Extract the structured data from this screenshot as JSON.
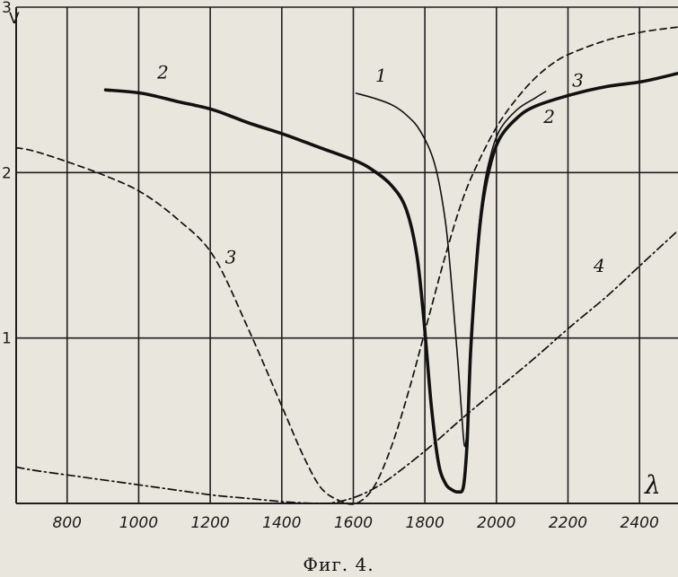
{
  "chart_data": {
    "type": "line",
    "caption": "Фиг. 4.",
    "xlabel": "λ",
    "ylabel": "V",
    "xlim": [
      650,
      2500
    ],
    "ylim": [
      0,
      3
    ],
    "xticks": [
      800,
      1000,
      1200,
      1400,
      1600,
      1800,
      2000,
      2200,
      2400
    ],
    "xtick_labels": [
      "800",
      "1000",
      "1200",
      "1400",
      "1600",
      "1800",
      "2000",
      "2200",
      "2400"
    ],
    "yticks": [
      1,
      2,
      3
    ],
    "ytick_labels": [
      "1",
      "2",
      "3"
    ],
    "grid": true,
    "series": [
      {
        "name": "1",
        "style": "solid-thin",
        "x": [
          1600,
          1650,
          1700,
          1740,
          1780,
          1820,
          1850,
          1870,
          1885,
          1895,
          1903,
          1910,
          1920,
          1935,
          1950,
          1970,
          2000,
          2050,
          2100,
          2130
        ],
        "y": [
          2.48,
          2.45,
          2.41,
          2.35,
          2.25,
          2.05,
          1.7,
          1.25,
          0.85,
          0.55,
          0.35,
          0.45,
          0.95,
          1.45,
          1.8,
          2.05,
          2.25,
          2.38,
          2.45,
          2.49
        ]
      },
      {
        "name": "2",
        "style": "solid-thick",
        "x": [
          900,
          1000,
          1100,
          1200,
          1300,
          1400,
          1500,
          1600,
          1650,
          1700,
          1740,
          1770,
          1790,
          1810,
          1830,
          1850,
          1870,
          1885,
          1900,
          1910,
          1920,
          1935,
          1950,
          1970,
          2000,
          2050,
          2100,
          2200,
          2300,
          2400,
          2500
        ],
        "y": [
          2.5,
          2.48,
          2.43,
          2.38,
          2.3,
          2.23,
          2.15,
          2.07,
          2.01,
          1.92,
          1.78,
          1.5,
          1.1,
          0.6,
          0.25,
          0.12,
          0.08,
          0.07,
          0.1,
          0.35,
          0.9,
          1.4,
          1.75,
          2.0,
          2.2,
          2.33,
          2.4,
          2.47,
          2.52,
          2.55,
          2.6
        ]
      },
      {
        "name": "3",
        "style": "dashed",
        "x": [
          650,
          700,
          800,
          900,
          1000,
          1100,
          1200,
          1300,
          1400,
          1450,
          1500,
          1550,
          1600,
          1650,
          1700,
          1750,
          1800,
          1850,
          1900,
          1950,
          2000,
          2050,
          2100,
          2150,
          2200,
          2300,
          2400,
          2500
        ],
        "y": [
          2.15,
          2.13,
          2.06,
          1.98,
          1.88,
          1.72,
          1.5,
          1.05,
          0.55,
          0.3,
          0.1,
          0.02,
          0.0,
          0.1,
          0.35,
          0.7,
          1.1,
          1.5,
          1.85,
          2.1,
          2.3,
          2.45,
          2.57,
          2.66,
          2.72,
          2.8,
          2.85,
          2.88
        ]
      },
      {
        "name": "4",
        "style": "dash-dot",
        "x": [
          650,
          700,
          800,
          900,
          1000,
          1100,
          1200,
          1300,
          1400,
          1500,
          1550,
          1600,
          1650,
          1700,
          1800,
          1900,
          2000,
          2100,
          2200,
          2300,
          2400,
          2500
        ],
        "y": [
          0.22,
          0.2,
          0.17,
          0.14,
          0.11,
          0.08,
          0.05,
          0.03,
          0.01,
          0.0,
          0.01,
          0.04,
          0.09,
          0.16,
          0.33,
          0.52,
          0.7,
          0.88,
          1.07,
          1.25,
          1.45,
          1.65
        ]
      }
    ],
    "curve_labels": [
      {
        "text": "1",
        "x": 1670,
        "y": 2.55
      },
      {
        "text": "2",
        "x": 1060,
        "y": 2.57
      },
      {
        "text": "2",
        "x": 2140,
        "y": 2.3
      },
      {
        "text": "3",
        "x": 2220,
        "y": 2.52
      },
      {
        "text": "3",
        "x": 1250,
        "y": 1.45
      },
      {
        "text": "4",
        "x": 2280,
        "y": 1.4
      }
    ]
  }
}
